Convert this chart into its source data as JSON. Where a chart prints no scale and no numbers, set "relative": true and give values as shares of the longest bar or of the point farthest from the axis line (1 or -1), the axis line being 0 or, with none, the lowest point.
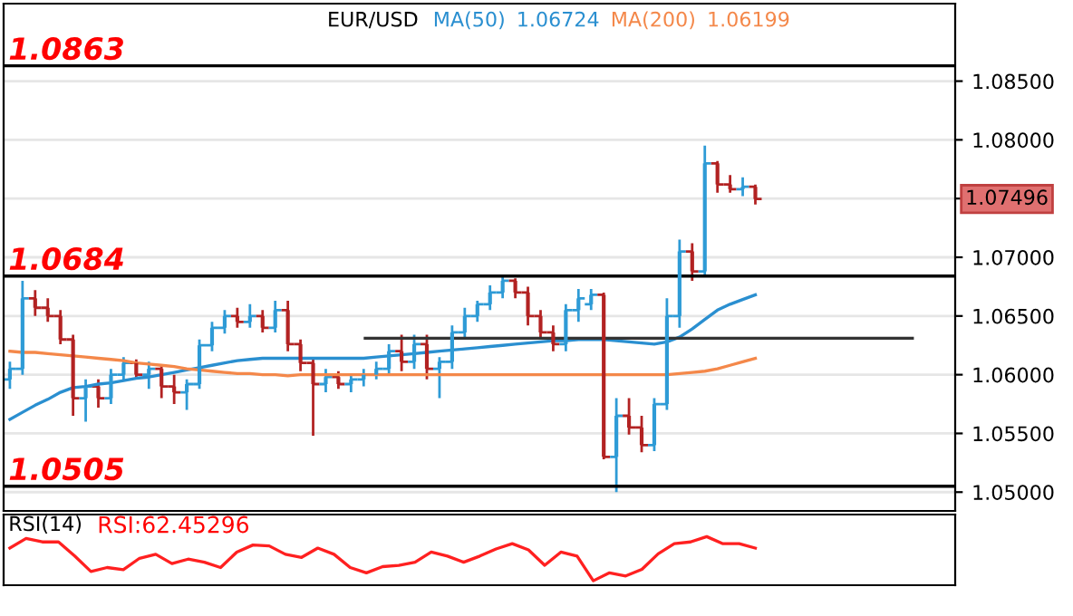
{
  "chart_data": [
    {
      "type": "candlestick",
      "title": "EUR/USD",
      "categories": [
        null,
        null,
        null,
        null,
        null,
        null,
        null,
        null,
        null,
        null,
        null,
        null,
        null,
        null,
        null,
        null,
        null,
        null,
        null,
        null,
        null,
        null,
        null,
        null,
        null,
        null,
        null,
        null,
        null,
        null,
        null,
        null,
        null,
        null,
        null,
        null,
        null,
        null,
        null,
        null,
        null,
        null,
        null,
        null,
        null,
        null,
        null,
        null,
        null,
        null,
        null,
        null,
        null,
        null,
        null,
        null,
        null,
        null,
        null,
        null
      ],
      "ohlc": [
        [
          1.0596,
          1.0611,
          1.0588,
          1.0605
        ],
        [
          1.0605,
          1.068,
          1.06,
          1.0665
        ],
        [
          1.0665,
          1.0672,
          1.065,
          1.0657
        ],
        [
          1.0657,
          1.0665,
          1.0645,
          1.065
        ],
        [
          1.065,
          1.0655,
          1.0626,
          1.063
        ],
        [
          1.063,
          1.0634,
          1.0565,
          1.058
        ],
        [
          1.058,
          1.0596,
          1.056,
          1.059
        ],
        [
          1.059,
          1.0596,
          1.0572,
          1.058
        ],
        [
          1.058,
          1.0605,
          1.0575,
          1.06
        ],
        [
          1.06,
          1.0615,
          1.0595,
          1.061
        ],
        [
          1.061,
          1.0613,
          1.0596,
          1.06
        ],
        [
          1.06,
          1.0611,
          1.0588,
          1.0605
        ],
        [
          1.0605,
          1.0609,
          1.058,
          1.059
        ],
        [
          1.059,
          1.06,
          1.0575,
          1.0585
        ],
        [
          1.0585,
          1.0596,
          1.057,
          1.0592
        ],
        [
          1.0592,
          1.063,
          1.0588,
          1.0625
        ],
        [
          1.0625,
          1.0645,
          1.062,
          1.064
        ],
        [
          1.064,
          1.0655,
          1.0635,
          1.065
        ],
        [
          1.065,
          1.0657,
          1.064,
          1.0645
        ],
        [
          1.0645,
          1.066,
          1.064,
          1.065
        ],
        [
          1.065,
          1.0655,
          1.0636,
          1.064
        ],
        [
          1.064,
          1.0663,
          1.0636,
          1.0655
        ],
        [
          1.0655,
          1.0663,
          1.062,
          1.0626
        ],
        [
          1.0626,
          1.063,
          1.0603,
          1.061
        ],
        [
          1.061,
          1.0615,
          1.0548,
          1.0592
        ],
        [
          1.0592,
          1.0605,
          1.0585,
          1.0598
        ],
        [
          1.0598,
          1.0603,
          1.0588,
          1.0592
        ],
        [
          1.0592,
          1.06,
          1.0585,
          1.0596
        ],
        [
          1.0596,
          1.0605,
          1.059,
          1.06
        ],
        [
          1.06,
          1.0611,
          1.0596,
          1.0605
        ],
        [
          1.0605,
          1.0626,
          1.06,
          1.062
        ],
        [
          1.062,
          1.0634,
          1.0603,
          1.0611
        ],
        [
          1.0611,
          1.0634,
          1.0605,
          1.0626
        ],
        [
          1.0626,
          1.0634,
          1.0596,
          1.0605
        ],
        [
          1.0605,
          1.0615,
          1.058,
          1.0611
        ],
        [
          1.0611,
          1.0642,
          1.0605,
          1.0636
        ],
        [
          1.0636,
          1.0657,
          1.063,
          1.065
        ],
        [
          1.065,
          1.0663,
          1.0645,
          1.066
        ],
        [
          1.066,
          1.0676,
          1.0655,
          1.067
        ],
        [
          1.067,
          1.0684,
          1.0665,
          1.068
        ],
        [
          1.068,
          1.0682,
          1.0665,
          1.067
        ],
        [
          1.067,
          1.0675,
          1.0642,
          1.065
        ],
        [
          1.065,
          1.0655,
          1.063,
          1.0636
        ],
        [
          1.0636,
          1.0642,
          1.062,
          1.0626
        ],
        [
          1.0626,
          1.066,
          1.062,
          1.0655
        ],
        [
          1.0655,
          1.0673,
          1.0645,
          1.0665
        ],
        [
          1.066,
          1.0673,
          1.0655,
          1.0668
        ],
        [
          1.0668,
          1.067,
          1.0528,
          1.053
        ],
        [
          1.053,
          1.058,
          1.05,
          1.0565
        ],
        [
          1.0565,
          1.058,
          1.0549,
          1.0555
        ],
        [
          1.0555,
          1.0565,
          1.0534,
          1.054
        ],
        [
          1.054,
          1.058,
          1.0535,
          1.0575
        ],
        [
          1.0575,
          1.0665,
          1.057,
          1.065
        ],
        [
          1.065,
          1.0715,
          1.064,
          1.0705
        ],
        [
          1.0705,
          1.0712,
          1.068,
          1.0688
        ],
        [
          1.0688,
          1.0795,
          1.0685,
          1.078
        ],
        [
          1.078,
          1.0782,
          1.0755,
          1.0762
        ],
        [
          1.0762,
          1.077,
          1.0755,
          1.0758
        ],
        [
          1.0758,
          1.0768,
          1.0752,
          1.076
        ],
        [
          1.076,
          1.0762,
          1.0745,
          1.07496
        ]
      ],
      "colors": [
        "#2e9bd6",
        "#2e9bd6",
        "#b22222",
        "#b22222",
        "#b22222",
        "#b22222",
        "#2e9bd6",
        "#b22222",
        "#2e9bd6",
        "#2e9bd6",
        "#b22222",
        "#2e9bd6",
        "#b22222",
        "#b22222",
        "#2e9bd6",
        "#2e9bd6",
        "#2e9bd6",
        "#2e9bd6",
        "#b22222",
        "#2e9bd6",
        "#b22222",
        "#2e9bd6",
        "#b22222",
        "#b22222",
        "#b22222",
        "#2e9bd6",
        "#b22222",
        "#2e9bd6",
        "#2e9bd6",
        "#2e9bd6",
        "#2e9bd6",
        "#b22222",
        "#2e9bd6",
        "#b22222",
        "#2e9bd6",
        "#2e9bd6",
        "#2e9bd6",
        "#2e9bd6",
        "#2e9bd6",
        "#2e9bd6",
        "#b22222",
        "#b22222",
        "#b22222",
        "#b22222",
        "#2e9bd6",
        "#2e9bd6",
        "#2e9bd6",
        "#b22222",
        "#2e9bd6",
        "#b22222",
        "#b22222",
        "#2e9bd6",
        "#2e9bd6",
        "#2e9bd6",
        "#b22222",
        "#2e9bd6",
        "#b22222",
        "#b22222",
        "#2e9bd6",
        "#b22222"
      ],
      "series": [
        {
          "type": "line",
          "name": "MA(50)",
          "color": "#2a8fd0",
          "values": [
            1.0562,
            1.0568,
            1.0574,
            1.0579,
            1.0585,
            1.0589,
            1.059,
            1.0592,
            1.0593,
            1.0595,
            1.0597,
            1.0598,
            1.06,
            1.0602,
            1.0604,
            1.0606,
            1.0608,
            1.061,
            1.0612,
            1.0613,
            1.0614,
            1.0614,
            1.0614,
            1.0614,
            1.0614,
            1.0614,
            1.0614,
            1.0614,
            1.0614,
            1.0615,
            1.0616,
            1.0617,
            1.0618,
            1.0619,
            1.062,
            1.0621,
            1.0622,
            1.0623,
            1.0624,
            1.0625,
            1.0626,
            1.0627,
            1.0628,
            1.0629,
            1.0629,
            1.063,
            1.063,
            1.063,
            1.0629,
            1.0628,
            1.0627,
            1.0626,
            1.0628,
            1.0632,
            1.0639,
            1.0647,
            1.0655,
            1.066,
            1.0664,
            1.0668
          ]
        },
        {
          "type": "line",
          "name": "MA(200)",
          "color": "#f4884a",
          "values": [
            1.062,
            1.0619,
            1.0619,
            1.0618,
            1.0617,
            1.0616,
            1.0615,
            1.0614,
            1.0613,
            1.0612,
            1.061,
            1.0609,
            1.0608,
            1.0607,
            1.0605,
            1.0604,
            1.0603,
            1.0602,
            1.0601,
            1.0601,
            1.06,
            1.06,
            1.0599,
            1.06,
            1.06,
            1.06,
            1.06,
            1.06,
            1.06,
            1.06,
            1.06,
            1.06,
            1.06,
            1.06,
            1.06,
            1.06,
            1.06,
            1.06,
            1.06,
            1.06,
            1.06,
            1.06,
            1.06,
            1.06,
            1.06,
            1.06,
            1.06,
            1.06,
            1.06,
            1.06,
            1.06,
            1.06,
            1.06,
            1.0601,
            1.0602,
            1.0603,
            1.0605,
            1.0608,
            1.0611,
            1.0614
          ]
        }
      ],
      "ref_lines": [
        {
          "axis": "y",
          "value": 1.0863,
          "label": "1.0863",
          "color": "#000000"
        },
        {
          "axis": "y",
          "value": 1.0684,
          "label": "1.0684",
          "color": "#000000"
        },
        {
          "axis": "y",
          "value": 1.0505,
          "label": "1.0505",
          "color": "#000000"
        },
        {
          "axis": "y",
          "value": 1.0631,
          "color": "#333333"
        }
      ],
      "annotations": [
        "1.06724",
        "1.06199",
        "1.07496"
      ],
      "ylim": [
        1.0484,
        1.0916
      ],
      "yticks": [
        {
          "value": 1.05,
          "label": "1.05000"
        },
        {
          "value": 1.055,
          "label": "1.05500"
        },
        {
          "value": 1.06,
          "label": "1.06000"
        },
        {
          "value": 1.065,
          "label": "1.06500"
        },
        {
          "value": 1.07,
          "label": "1.07000"
        },
        {
          "value": 1.075,
          "label": null
        },
        {
          "value": 1.08,
          "label": "1.08000"
        },
        {
          "value": 1.085,
          "label": "1.08500"
        }
      ],
      "grid": "y",
      "tick_labels": "y"
    },
    {
      "type": "line",
      "title": "RSI(14)",
      "relative": true,
      "tick_labels": false,
      "annotations": [
        "RSI:62.45296"
      ],
      "categories": [
        null,
        null,
        null,
        null,
        null,
        null,
        null,
        null,
        null,
        null,
        null,
        null,
        null,
        null,
        null,
        null,
        null,
        null,
        null,
        null,
        null,
        null,
        null,
        null,
        null,
        null,
        null,
        null,
        null,
        null,
        null,
        null,
        null,
        null,
        null,
        null,
        null,
        null,
        null,
        null,
        null,
        null,
        null,
        null,
        null,
        null,
        null
      ],
      "series": [
        {
          "color": "#ff2020",
          "values": [
            0.74,
            0.96,
            0.88,
            0.88,
            0.56,
            0.21,
            0.3,
            0.25,
            0.51,
            0.6,
            0.39,
            0.49,
            0.42,
            0.3,
            0.65,
            0.81,
            0.79,
            0.6,
            0.53,
            0.74,
            0.6,
            0.3,
            0.18,
            0.32,
            0.35,
            0.42,
            0.65,
            0.56,
            0.42,
            0.56,
            0.72,
            0.84,
            0.7,
            0.35,
            0.65,
            0.56,
            0,
            0.18,
            0.11,
            0.26,
            0.61,
            0.84,
            0.88,
            1.0,
            0.84,
            0.84,
            0.74
          ]
        }
      ]
    }
  ]
}
